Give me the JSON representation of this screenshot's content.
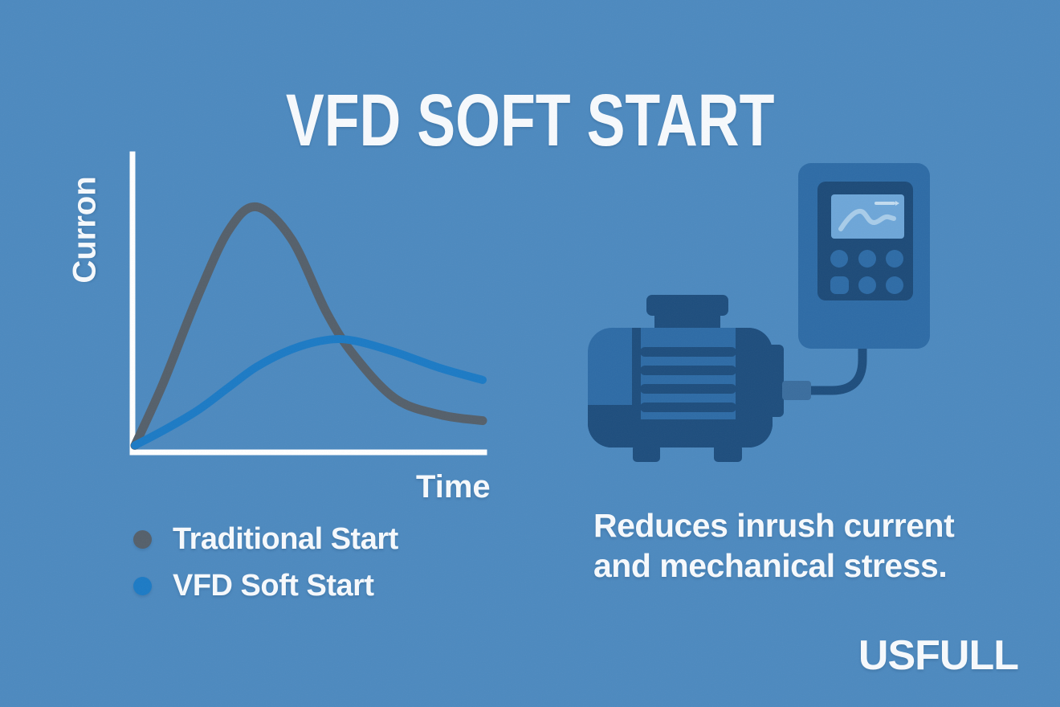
{
  "palette": {
    "background": "#4c89bf",
    "text_white": "#f7fafd",
    "navy": "#1d4d7d",
    "mid_blue": "#2d6ba6",
    "panel_navy": "#1c4a78",
    "screen_blue": "#6da6d8",
    "squiggle_blue": "#a8cce9",
    "dash_blue": "#c3dcf0",
    "connector_blue": "#3a6d9e",
    "axis_white": "#ffffff"
  },
  "header": {
    "title": "VFD SOFT START"
  },
  "chart_data": {
    "type": "line",
    "title": "",
    "xlabel": "Time",
    "ylabel": "Curron",
    "x": [
      0,
      0.08,
      0.18,
      0.27,
      0.35,
      0.45,
      0.55,
      0.63,
      0.75,
      0.88,
      1
    ],
    "series": [
      {
        "name": "Traditional Start",
        "color": "#545f6a",
        "values": [
          0.01,
          0.22,
          0.52,
          0.75,
          0.83,
          0.72,
          0.47,
          0.32,
          0.17,
          0.115,
          0.095
        ]
      },
      {
        "name": "VFD Soft Start",
        "color": "#1b7ac5",
        "values": [
          0.01,
          0.06,
          0.13,
          0.21,
          0.28,
          0.34,
          0.372,
          0.37,
          0.33,
          0.275,
          0.235
        ]
      }
    ],
    "ylim": [
      0,
      1
    ],
    "grid": false,
    "legend_position": "below-left",
    "axes": "white L-shaped axes, no ticks, no numeric labels"
  },
  "caption": {
    "lines": [
      "Reduces inrush current",
      "and mechanical stress."
    ]
  },
  "brand": {
    "name": "USFULL"
  },
  "illustration": {
    "icons": [
      "motor-icon",
      "vfd-drive-icon",
      "cable"
    ],
    "vfd_buttons_count": 6,
    "screen_shows": "waveform squiggle"
  }
}
